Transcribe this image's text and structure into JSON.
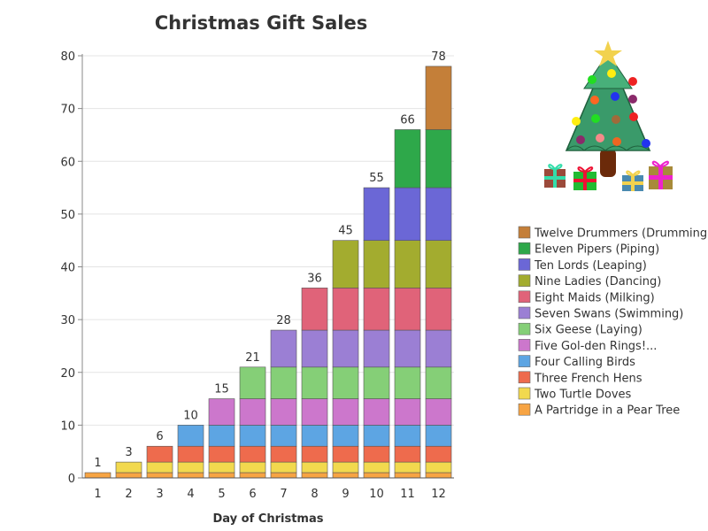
{
  "chart_data": {
    "type": "bar",
    "stacked": true,
    "title": "Christmas Gift Sales",
    "xlabel": "Day of Christmas",
    "ylabel": "",
    "ylim": [
      0,
      80
    ],
    "yticks": [
      0,
      10,
      20,
      30,
      40,
      50,
      60,
      70,
      80
    ],
    "grid": true,
    "legend_position": "right",
    "categories": [
      "1",
      "2",
      "3",
      "4",
      "5",
      "6",
      "7",
      "8",
      "9",
      "10",
      "11",
      "12"
    ],
    "totals": [
      1,
      3,
      6,
      10,
      15,
      21,
      28,
      36,
      45,
      55,
      66,
      78
    ],
    "series": [
      {
        "name": "A Partridge in a Pear Tree",
        "color": "#f7a443",
        "values": [
          1,
          1,
          1,
          1,
          1,
          1,
          1,
          1,
          1,
          1,
          1,
          1
        ]
      },
      {
        "name": "Two Turtle Doves",
        "color": "#f2d94e",
        "values": [
          0,
          2,
          2,
          2,
          2,
          2,
          2,
          2,
          2,
          2,
          2,
          2
        ]
      },
      {
        "name": "Three French Hens",
        "color": "#ee6b4d",
        "values": [
          0,
          0,
          3,
          3,
          3,
          3,
          3,
          3,
          3,
          3,
          3,
          3
        ]
      },
      {
        "name": "Four Calling Birds",
        "color": "#5da5e3",
        "values": [
          0,
          0,
          0,
          4,
          4,
          4,
          4,
          4,
          4,
          4,
          4,
          4
        ]
      },
      {
        "name": "Five Gol-den Rings!...",
        "color": "#cc77cc",
        "values": [
          0,
          0,
          0,
          0,
          5,
          5,
          5,
          5,
          5,
          5,
          5,
          5
        ]
      },
      {
        "name": "Six Geese (Laying)",
        "color": "#85cf77",
        "values": [
          0,
          0,
          0,
          0,
          0,
          6,
          6,
          6,
          6,
          6,
          6,
          6
        ]
      },
      {
        "name": "Seven Swans (Swimming)",
        "color": "#9b7fd4",
        "values": [
          0,
          0,
          0,
          0,
          0,
          0,
          7,
          7,
          7,
          7,
          7,
          7
        ]
      },
      {
        "name": "Eight Maids (Milking)",
        "color": "#e06379",
        "values": [
          0,
          0,
          0,
          0,
          0,
          0,
          0,
          8,
          8,
          8,
          8,
          8
        ]
      },
      {
        "name": "Nine Ladies (Dancing)",
        "color": "#a3ac2f",
        "values": [
          0,
          0,
          0,
          0,
          0,
          0,
          0,
          0,
          9,
          9,
          9,
          9
        ]
      },
      {
        "name": "Ten Lords (Leaping)",
        "color": "#6b67d6",
        "values": [
          0,
          0,
          0,
          0,
          0,
          0,
          0,
          0,
          0,
          10,
          10,
          10
        ]
      },
      {
        "name": "Eleven Pipers (Piping)",
        "color": "#2ea84a",
        "values": [
          0,
          0,
          0,
          0,
          0,
          0,
          0,
          0,
          0,
          0,
          11,
          11
        ]
      },
      {
        "name": "Twelve Drummers (Drumming)",
        "color": "#c47f39",
        "values": [
          0,
          0,
          0,
          0,
          0,
          0,
          0,
          0,
          0,
          0,
          0,
          12
        ]
      }
    ]
  },
  "decoration": {
    "icon": "christmas-tree-with-gifts-icon"
  }
}
